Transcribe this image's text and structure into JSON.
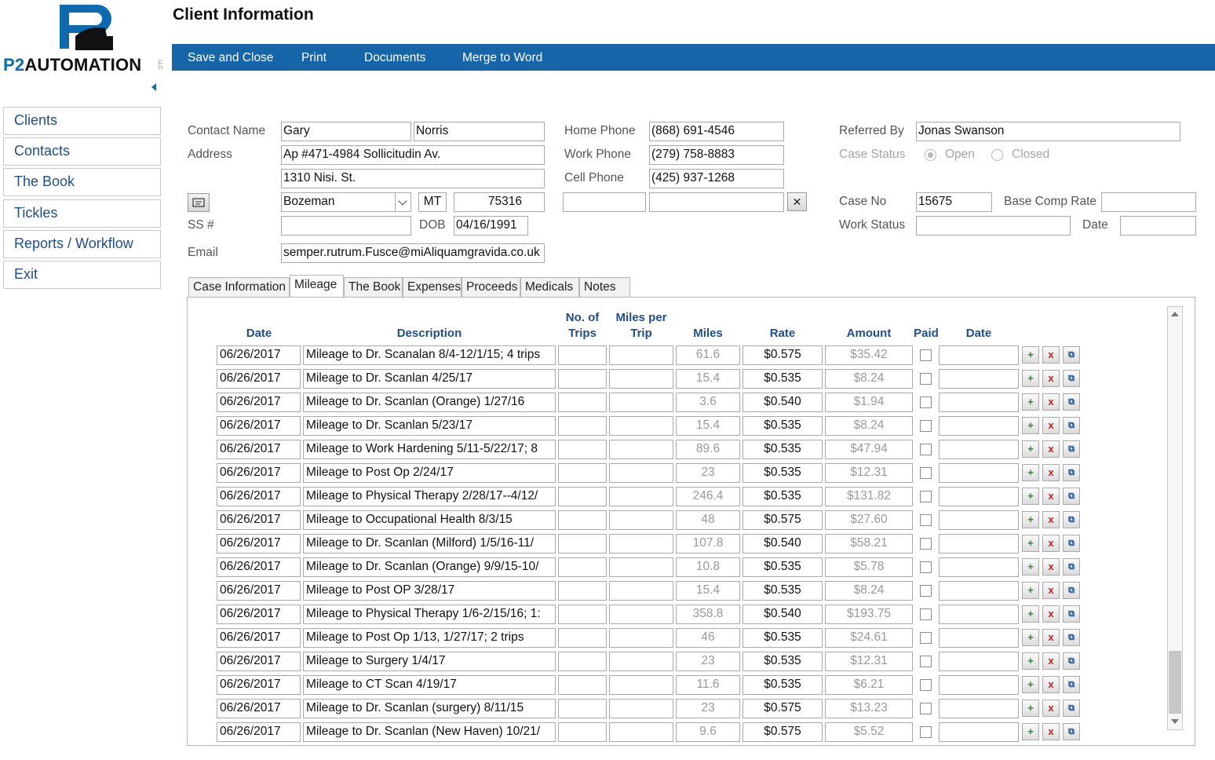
{
  "logo": {
    "brand_prefix": "P2",
    "brand_rest": "AUTOMATION",
    "suffix": "LLC"
  },
  "sidebar": {
    "items": [
      {
        "label": "Clients"
      },
      {
        "label": "Contacts"
      },
      {
        "label": "The Book"
      },
      {
        "label": "Tickles"
      },
      {
        "label": "Reports / Workflow"
      },
      {
        "label": "Exit"
      }
    ]
  },
  "header": {
    "title": "Client Information"
  },
  "toolbar": {
    "save_close": "Save and Close",
    "print": "Print",
    "documents": "Documents",
    "merge_word": "Merge to Word"
  },
  "form": {
    "labels": {
      "contact_name": "Contact Name",
      "address": "Address",
      "ss": "SS #",
      "dob": "DOB",
      "email": "Email",
      "home_phone": "Home Phone",
      "work_phone": "Work Phone",
      "cell_phone": "Cell Phone",
      "referred_by": "Referred By",
      "case_status": "Case Status",
      "open": "Open",
      "closed": "Closed",
      "case_no": "Case No",
      "base_comp_rate": "Base Comp Rate",
      "work_status": "Work Status",
      "date": "Date"
    },
    "first_name": "Gary",
    "last_name": "Norris",
    "address1": "Ap #471-4984 Sollicitudin Av.",
    "address2": "1310 Nisi. St.",
    "city": "Bozeman",
    "state": "MT",
    "zip": "75316",
    "ss": "",
    "dob": "04/16/1991",
    "email": "semper.rutrum.Fusce@miAliquamgravida.co.uk",
    "home_phone": "(868) 691-4546",
    "work_phone": "(279) 758-8883",
    "cell_phone": "(425) 937-1268",
    "extra1": "",
    "extra2": "",
    "referred_by": "Jonas Swanson",
    "case_status": "Open",
    "case_no": "15675",
    "base_comp_rate": "",
    "work_status": "",
    "status_date": ""
  },
  "tabs": [
    {
      "label": "Case Information"
    },
    {
      "label": "Mileage",
      "active": true
    },
    {
      "label": "The Book"
    },
    {
      "label": "Expenses"
    },
    {
      "label": "Proceeds"
    },
    {
      "label": "Medicals"
    },
    {
      "label": "Notes"
    }
  ],
  "mileage": {
    "headers": {
      "date": "Date",
      "description": "Description",
      "trips_1": "No. of",
      "trips_2": "Trips",
      "mpt_1": "Miles per",
      "mpt_2": "Trip",
      "miles": "Miles",
      "rate": "Rate",
      "amount": "Amount",
      "paid": "Paid",
      "paid_date": "Date"
    },
    "rows": [
      {
        "date": "06/26/2017",
        "description": "Mileage to Dr. Scanalan 8/4-12/1/15; 4 trips",
        "trips": "",
        "mpt": "",
        "miles": "61.6",
        "rate": "$0.575",
        "amount": "$35.42",
        "paid": false,
        "paid_date": ""
      },
      {
        "date": "06/26/2017",
        "description": "Mileage to Dr. Scanlan 4/25/17",
        "trips": "",
        "mpt": "",
        "miles": "15.4",
        "rate": "$0.535",
        "amount": "$8.24",
        "paid": false,
        "paid_date": ""
      },
      {
        "date": "06/26/2017",
        "description": "Mileage to Dr. Scanlan (Orange) 1/27/16",
        "trips": "",
        "mpt": "",
        "miles": "3.6",
        "rate": "$0.540",
        "amount": "$1.94",
        "paid": false,
        "paid_date": ""
      },
      {
        "date": "06/26/2017",
        "description": "Mileage to Dr. Scanlan 5/23/17",
        "trips": "",
        "mpt": "",
        "miles": "15.4",
        "rate": "$0.535",
        "amount": "$8.24",
        "paid": false,
        "paid_date": ""
      },
      {
        "date": "06/26/2017",
        "description": "Mileage to Work Hardening 5/11-5/22/17; 8",
        "trips": "",
        "mpt": "",
        "miles": "89.6",
        "rate": "$0.535",
        "amount": "$47.94",
        "paid": false,
        "paid_date": ""
      },
      {
        "date": "06/26/2017",
        "description": "Mileage to Post Op 2/24/17",
        "trips": "",
        "mpt": "",
        "miles": "23",
        "rate": "$0.535",
        "amount": "$12.31",
        "paid": false,
        "paid_date": ""
      },
      {
        "date": "06/26/2017",
        "description": "Mileage to Physical Therapy 2/28/17--4/12/",
        "trips": "",
        "mpt": "",
        "miles": "246.4",
        "rate": "$0.535",
        "amount": "$131.82",
        "paid": false,
        "paid_date": ""
      },
      {
        "date": "06/26/2017",
        "description": "Mileage to Occupational Health 8/3/15",
        "trips": "",
        "mpt": "",
        "miles": "48",
        "rate": "$0.575",
        "amount": "$27.60",
        "paid": false,
        "paid_date": ""
      },
      {
        "date": "06/26/2017",
        "description": "Mileage to Dr. Scanlan (Milford) 1/5/16-11/",
        "trips": "",
        "mpt": "",
        "miles": "107.8",
        "rate": "$0.540",
        "amount": "$58.21",
        "paid": false,
        "paid_date": ""
      },
      {
        "date": "06/26/2017",
        "description": "Mileage to Dr. Scanlan (Orange) 9/9/15-10/",
        "trips": "",
        "mpt": "",
        "miles": "10.8",
        "rate": "$0.535",
        "amount": "$5.78",
        "paid": false,
        "paid_date": ""
      },
      {
        "date": "06/26/2017",
        "description": "Mileage to Post OP 3/28/17",
        "trips": "",
        "mpt": "",
        "miles": "15.4",
        "rate": "$0.535",
        "amount": "$8.24",
        "paid": false,
        "paid_date": ""
      },
      {
        "date": "06/26/2017",
        "description": "Mileage to Physical Therapy 1/6-2/15/16; 1:",
        "trips": "",
        "mpt": "",
        "miles": "358.8",
        "rate": "$0.540",
        "amount": "$193.75",
        "paid": false,
        "paid_date": ""
      },
      {
        "date": "06/26/2017",
        "description": "Mileage to Post Op 1/13, 1/27/17; 2 trips",
        "trips": "",
        "mpt": "",
        "miles": "46",
        "rate": "$0.535",
        "amount": "$24.61",
        "paid": false,
        "paid_date": ""
      },
      {
        "date": "06/26/2017",
        "description": "Mileage to Surgery 1/4/17",
        "trips": "",
        "mpt": "",
        "miles": "23",
        "rate": "$0.535",
        "amount": "$12.31",
        "paid": false,
        "paid_date": ""
      },
      {
        "date": "06/26/2017",
        "description": "Mileage to CT Scan 4/19/17",
        "trips": "",
        "mpt": "",
        "miles": "11.6",
        "rate": "$0.535",
        "amount": "$6.21",
        "paid": false,
        "paid_date": ""
      },
      {
        "date": "06/26/2017",
        "description": "Mileage to Dr. Scanlan (surgery) 8/11/15",
        "trips": "",
        "mpt": "",
        "miles": "23",
        "rate": "$0.575",
        "amount": "$13.23",
        "paid": false,
        "paid_date": ""
      },
      {
        "date": "06/26/2017",
        "description": "Mileage to Dr. Scanlan (New Haven) 10/21/",
        "trips": "",
        "mpt": "",
        "miles": "9.6",
        "rate": "$0.575",
        "amount": "$5.52",
        "paid": false,
        "paid_date": ""
      }
    ],
    "row_icons": {
      "add": "plus-icon",
      "delete": "x-icon",
      "copy": "copy-icon"
    }
  },
  "colors": {
    "toolbar": "#1565a8",
    "header_text": "#1f4e8a",
    "add": "#2a8a2a",
    "delete": "#d21a1a"
  }
}
